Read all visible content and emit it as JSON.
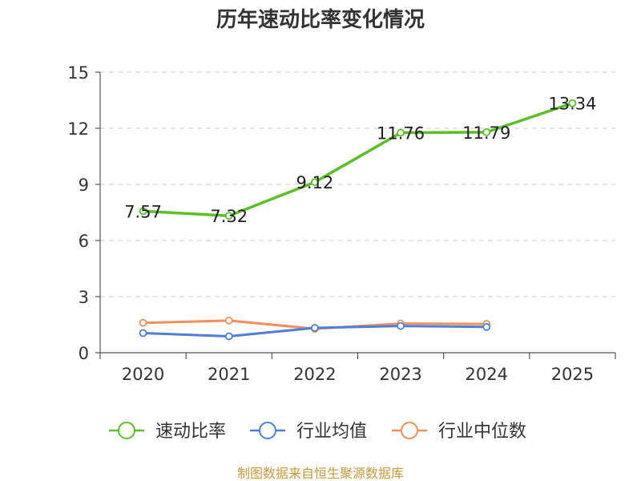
{
  "chart_data": {
    "type": "line",
    "title": "历年速动比率变化情况",
    "categories": [
      "2020",
      "2021",
      "2022",
      "2023",
      "2024",
      "2025"
    ],
    "xlabel": "",
    "ylabel": "",
    "ylim": [
      0,
      15
    ],
    "yticks": [
      "0",
      "3",
      "6",
      "9",
      "12",
      "15"
    ],
    "grid": true,
    "legend_position": "bottom",
    "series": [
      {
        "name": "速动比率",
        "color": "#5cbf2a",
        "values": [
          7.57,
          7.32,
          9.12,
          11.76,
          11.79,
          13.34
        ],
        "labels": [
          "7.57",
          "7.32",
          "9.12",
          "11.76",
          "11.79",
          "13.34"
        ]
      },
      {
        "name": "行业均值",
        "color": "#4f7fdb",
        "values": [
          1.05,
          0.88,
          1.33,
          1.43,
          1.38,
          null
        ]
      },
      {
        "name": "行业中位数",
        "color": "#f28f5c",
        "values": [
          1.6,
          1.72,
          1.28,
          1.56,
          1.54,
          null
        ]
      }
    ]
  },
  "source": "制图数据来自恒生聚源数据库"
}
